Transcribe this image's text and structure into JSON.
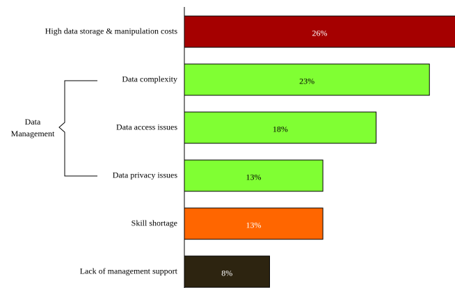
{
  "chart_data": {
    "type": "bar",
    "orientation": "horizontal",
    "categories": [
      "High data storage & manipulation costs",
      "Data complexity",
      "Data access issues",
      "Data privacy issues",
      "Skill shortage",
      "Lack of management support"
    ],
    "values": [
      26,
      23,
      18,
      13,
      13,
      8
    ],
    "value_labels": [
      "26%",
      "23%",
      "18%",
      "13%",
      "13%",
      "8%"
    ],
    "colors": [
      "#a50000",
      "#80ff33",
      "#80ff33",
      "#80ff33",
      "#ff6600",
      "#2d2410"
    ],
    "label_colors": [
      "#ffffff",
      "#000000",
      "#000000",
      "#000000",
      "#ffffff",
      "#ffffff"
    ],
    "xlim": [
      0,
      25.4
    ],
    "group_label": [
      "Data",
      "Management"
    ]
  }
}
